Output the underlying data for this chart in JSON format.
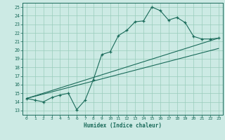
{
  "title": "",
  "xlabel": "Humidex (Indice chaleur)",
  "bg_color": "#cceae4",
  "grid_color": "#99ccbb",
  "line_color": "#1a6b5a",
  "spine_color": "#1a6b5a",
  "xlim": [
    -0.5,
    23.5
  ],
  "ylim": [
    12.5,
    25.5
  ],
  "xticks": [
    0,
    1,
    2,
    3,
    4,
    5,
    6,
    7,
    8,
    9,
    10,
    11,
    12,
    13,
    14,
    15,
    16,
    17,
    18,
    19,
    20,
    21,
    22,
    23
  ],
  "yticks": [
    13,
    14,
    15,
    16,
    17,
    18,
    19,
    20,
    21,
    22,
    23,
    24,
    25
  ],
  "line1_x": [
    0,
    1,
    2,
    3,
    4,
    5,
    6,
    7,
    8,
    9,
    10,
    11,
    12,
    13,
    14,
    15,
    16,
    17,
    18,
    19,
    20,
    21,
    22,
    23
  ],
  "line1_y": [
    14.4,
    14.2,
    14.0,
    14.5,
    14.8,
    15.0,
    13.1,
    14.2,
    16.6,
    19.5,
    19.8,
    21.7,
    22.3,
    23.3,
    23.4,
    25.0,
    24.6,
    23.5,
    23.8,
    23.2,
    21.6,
    21.3,
    21.3,
    21.4
  ],
  "line2_x": [
    0,
    23
  ],
  "line2_y": [
    14.4,
    21.4
  ],
  "line3_x": [
    0,
    23
  ],
  "line3_y": [
    14.4,
    20.2
  ]
}
